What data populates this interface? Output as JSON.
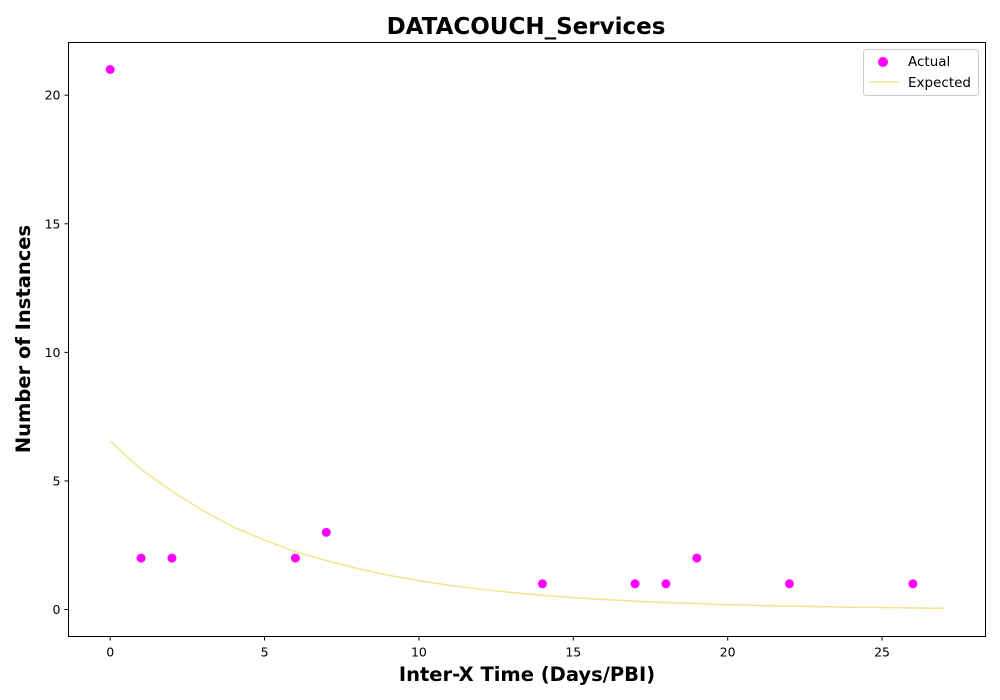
{
  "chart_data": {
    "type": "scatter",
    "title": "DATACOUCH_Services",
    "xlabel": "Inter-X Time (Days/PBI)",
    "ylabel": "Number of Instances",
    "xlim": [
      -1.35,
      28.35
    ],
    "ylim": [
      -1.05,
      22.05
    ],
    "xticks": [
      0,
      5,
      10,
      15,
      20,
      25
    ],
    "yticks": [
      0,
      5,
      10,
      15,
      20
    ],
    "grid": false,
    "legend_position": "top-right",
    "series": [
      {
        "name": "Actual",
        "kind": "scatter",
        "color": "#ff00ff",
        "x": [
          0,
          1,
          2,
          6,
          7,
          14,
          17,
          18,
          19,
          22,
          26
        ],
        "y": [
          21,
          2,
          2,
          2,
          3,
          1,
          1,
          1,
          2,
          1,
          1
        ]
      },
      {
        "name": "Expected",
        "kind": "line",
        "color": "#f0e68c",
        "x": [
          0,
          1,
          2,
          3,
          4,
          5,
          6,
          7,
          8,
          9,
          10,
          11,
          12,
          13,
          14,
          15,
          16,
          17,
          18,
          19,
          20,
          21,
          22,
          23,
          24,
          25,
          26,
          27
        ],
        "y": [
          6.55,
          5.45,
          4.6,
          3.85,
          3.2,
          2.7,
          2.25,
          1.9,
          1.6,
          1.33,
          1.12,
          0.94,
          0.79,
          0.66,
          0.55,
          0.46,
          0.39,
          0.32,
          0.27,
          0.23,
          0.19,
          0.16,
          0.13,
          0.11,
          0.09,
          0.08,
          0.06,
          0.05
        ]
      }
    ]
  }
}
